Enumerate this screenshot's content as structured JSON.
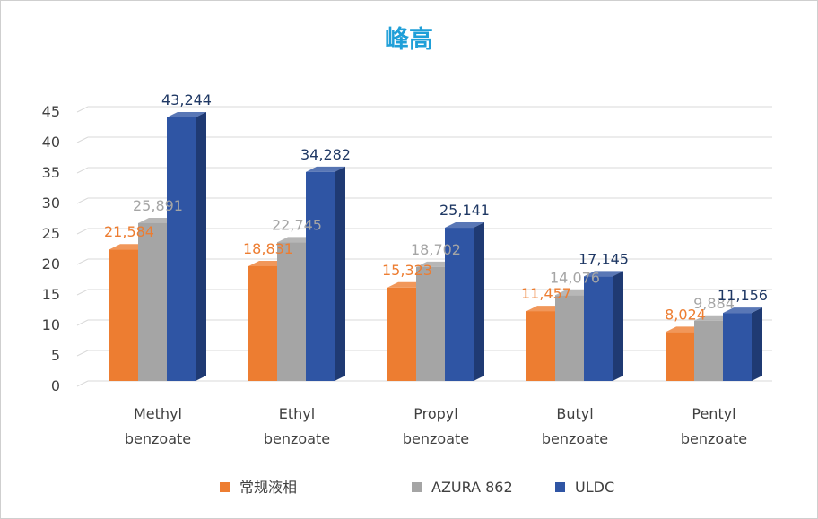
{
  "chart_data": {
    "type": "bar",
    "title": "峰高",
    "title_color": "#1f9fd8",
    "categories": [
      [
        "Methyl",
        "benzoate"
      ],
      [
        "Ethyl",
        "benzoate"
      ],
      [
        "Propyl",
        "benzoate"
      ],
      [
        "Butyl",
        "benzoate"
      ],
      [
        "Pentyl",
        "benzoate"
      ]
    ],
    "series": [
      {
        "name": "常规液相",
        "color": "#ed7d31",
        "dark": "#b85c1f",
        "label_color": "#ed7d31",
        "values": [
          21.584,
          18.831,
          15.323,
          11.457,
          8.024
        ],
        "labels": [
          "21,584",
          "18,831",
          "15,323",
          "11,457",
          "8,024"
        ]
      },
      {
        "name": "AZURA 862",
        "color": "#a5a5a5",
        "dark": "#7b7b7b",
        "label_color": "#a5a5a5",
        "values": [
          25.891,
          22.745,
          18.702,
          14.076,
          9.884
        ],
        "labels": [
          "25,891",
          "22,745",
          "18,702",
          "14,076",
          "9,884"
        ]
      },
      {
        "name": "ULDC",
        "color": "#2f55a4",
        "dark": "#1f3a73",
        "label_color": "#1f3864",
        "values": [
          43.244,
          34.282,
          25.141,
          17.145,
          11.156
        ],
        "labels": [
          "43,244",
          "34,282",
          "25,141",
          "17,145",
          "11,156"
        ]
      }
    ],
    "ylim": [
      0,
      45
    ],
    "yticks": [
      "0",
      "5",
      "10",
      "15",
      "20",
      "25",
      "30",
      "35",
      "40",
      "45"
    ],
    "grid": true,
    "legend_position": "bottom"
  }
}
